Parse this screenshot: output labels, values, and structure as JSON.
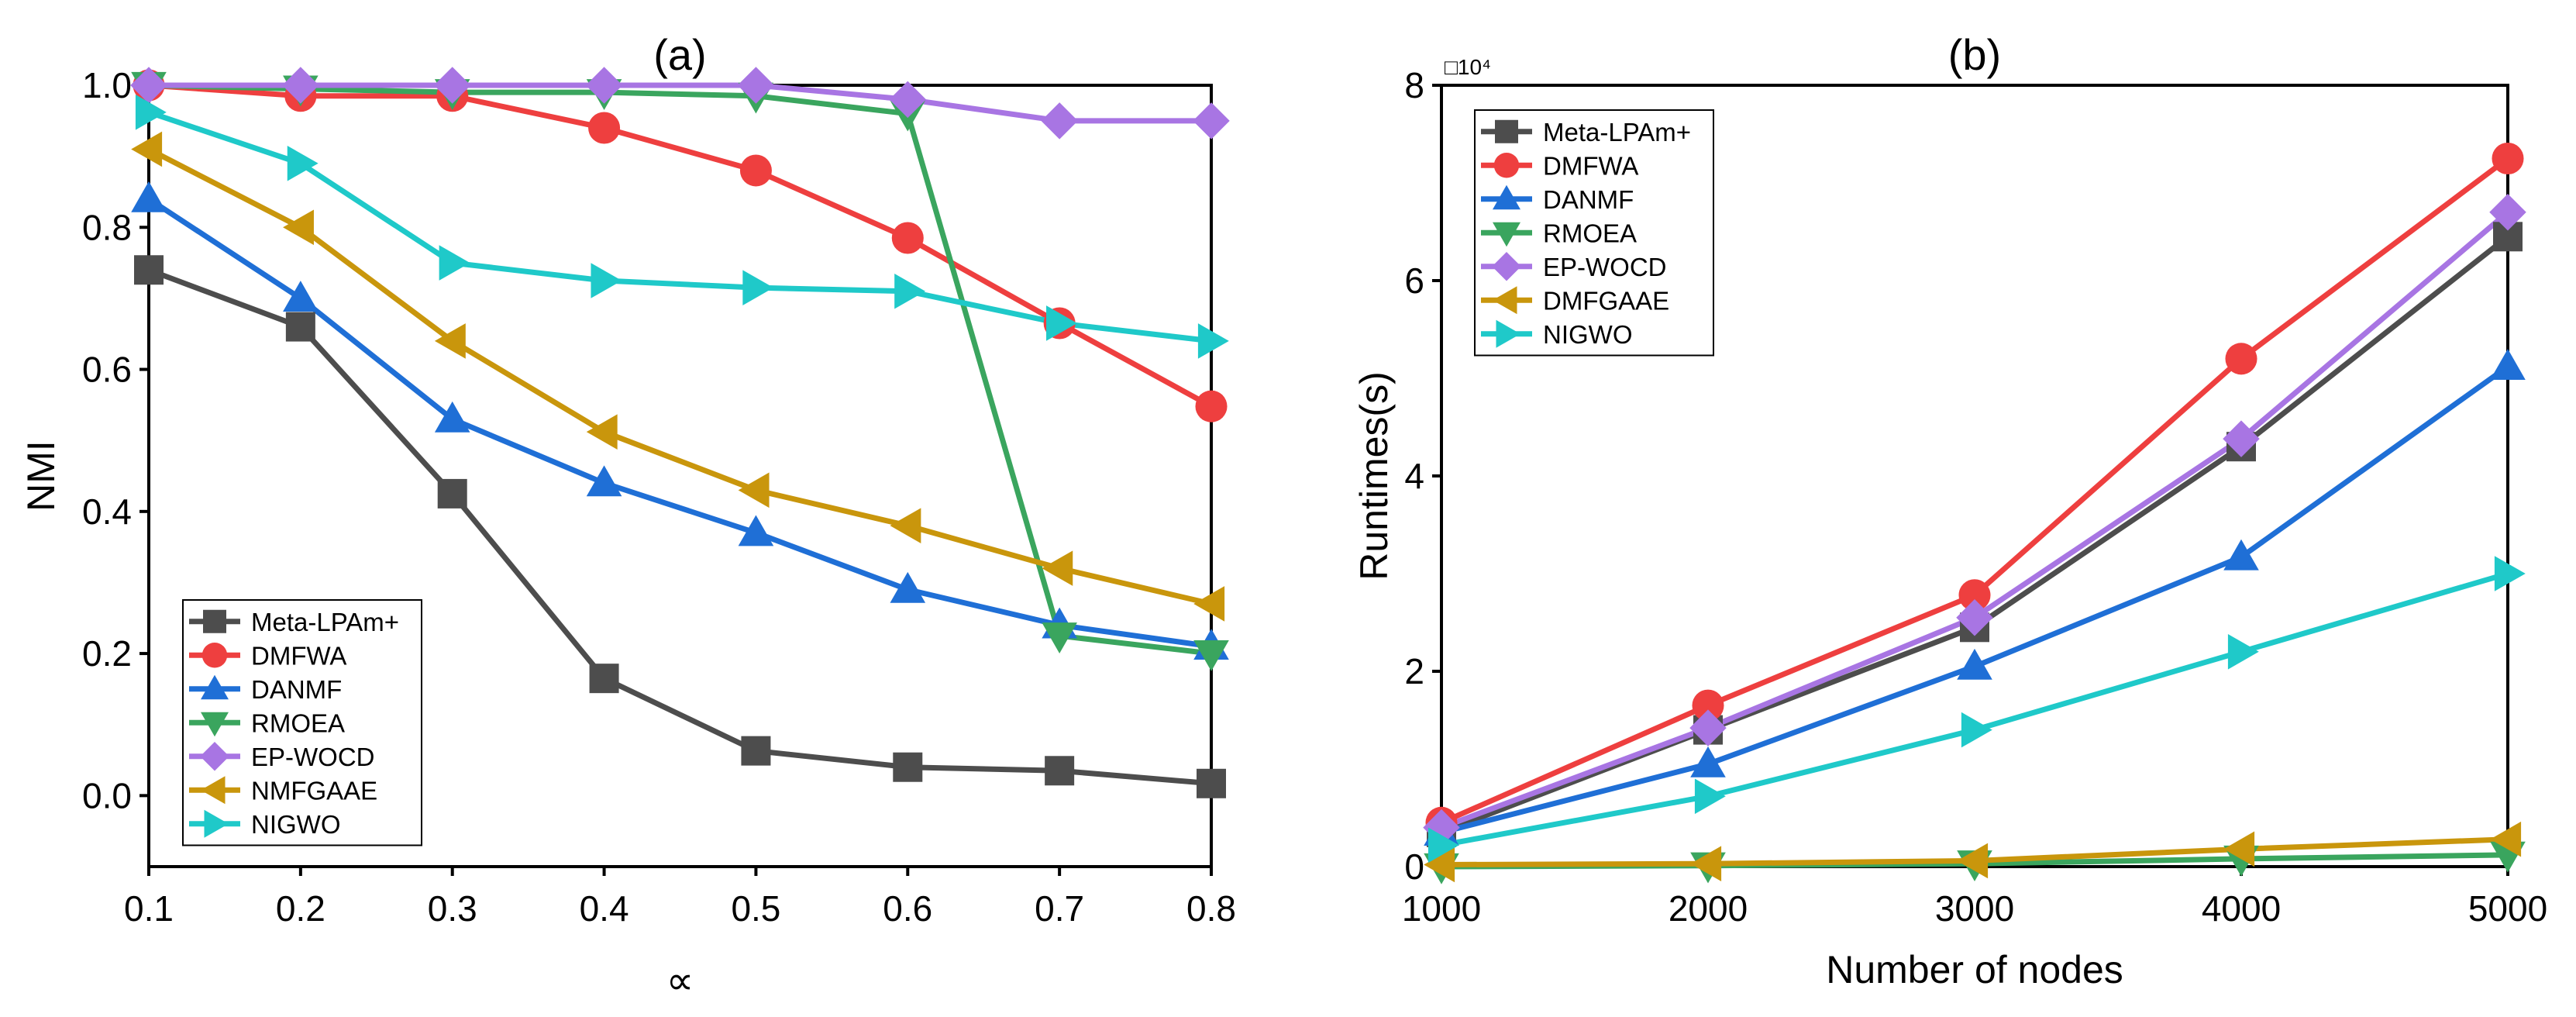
{
  "chart_data": [
    {
      "type": "line",
      "title": "(a)",
      "xlabel": "∝",
      "ylabel": "NMI",
      "x": [
        0.1,
        0.2,
        0.3,
        0.4,
        0.5,
        0.6,
        0.7,
        0.8
      ],
      "xticks": [
        0.1,
        0.2,
        0.3,
        0.4,
        0.5,
        0.6,
        0.7,
        0.8
      ],
      "xtick_labels": [
        "0.1",
        "0.2",
        "0.3",
        "0.4",
        "0.5",
        "0.6",
        "0.7",
        "0.8"
      ],
      "yticks": [
        0.0,
        0.2,
        0.4,
        0.6,
        0.8,
        1.0
      ],
      "ytick_labels": [
        "0.0",
        "0.2",
        "0.4",
        "0.6",
        "0.8",
        "1.0"
      ],
      "xlim": [
        0.1,
        0.8
      ],
      "ylim": [
        -0.1,
        1.0
      ],
      "legend_position": "bottom-left",
      "grid": false,
      "series": [
        {
          "name": "Meta-LPAm+",
          "color": "#4d4d4d",
          "marker": "square",
          "values": [
            0.74,
            0.66,
            0.425,
            0.165,
            0.063,
            0.04,
            0.035,
            0.017
          ]
        },
        {
          "name": "DMFWA",
          "color": "#ee3f3f",
          "marker": "circle",
          "values": [
            1.0,
            0.985,
            0.985,
            0.94,
            0.88,
            0.785,
            0.665,
            0.548
          ]
        },
        {
          "name": "DANMF",
          "color": "#1f6fd6",
          "marker": "triangle-up",
          "values": [
            0.84,
            0.7,
            0.53,
            0.44,
            0.37,
            0.29,
            0.24,
            0.21
          ]
        },
        {
          "name": "RMOEA",
          "color": "#3aa55e",
          "marker": "triangle-down",
          "values": [
            1.0,
            0.995,
            0.99,
            0.99,
            0.985,
            0.96,
            0.225,
            0.2
          ]
        },
        {
          "name": "EP-WOCD",
          "color": "#a875e3",
          "marker": "diamond",
          "values": [
            1.0,
            1.0,
            1.0,
            1.0,
            1.0,
            0.98,
            0.95,
            0.95
          ]
        },
        {
          "name": "NMFGAAE",
          "color": "#c9960c",
          "marker": "triangle-left",
          "values": [
            0.91,
            0.8,
            0.64,
            0.512,
            0.43,
            0.38,
            0.32,
            0.27
          ]
        },
        {
          "name": "NIGWO",
          "color": "#1fc9c9",
          "marker": "triangle-right",
          "values": [
            0.962,
            0.89,
            0.75,
            0.725,
            0.715,
            0.71,
            0.665,
            0.64
          ]
        }
      ]
    },
    {
      "type": "line",
      "title": "(b)",
      "xlabel": "Number of nodes",
      "ylabel": "Runtimes(s)",
      "y_scale_label": "□10⁴",
      "x": [
        1000,
        2000,
        3000,
        4000,
        5000
      ],
      "xticks": [
        1000,
        2000,
        3000,
        4000,
        5000
      ],
      "xtick_labels": [
        "1000",
        "2000",
        "3000",
        "4000",
        "5000"
      ],
      "yticks": [
        0,
        2,
        4,
        6,
        8
      ],
      "ytick_labels": [
        "0",
        "2",
        "4",
        "6",
        "8"
      ],
      "xlim": [
        1000,
        5000
      ],
      "ylim": [
        0,
        8
      ],
      "y_units": "x10^4 seconds",
      "legend_position": "top-left",
      "grid": false,
      "series": [
        {
          "name": "Meta-LPAm+",
          "color": "#4d4d4d",
          "marker": "square",
          "values": [
            0.35,
            1.4,
            2.45,
            4.3,
            6.45
          ]
        },
        {
          "name": "DMFWA",
          "color": "#ee3f3f",
          "marker": "circle",
          "values": [
            0.45,
            1.65,
            2.78,
            5.2,
            7.25
          ]
        },
        {
          "name": "DANMF",
          "color": "#1f6fd6",
          "marker": "triangle-up",
          "values": [
            0.35,
            1.05,
            2.05,
            3.17,
            5.12
          ]
        },
        {
          "name": "RMOEA",
          "color": "#3aa55e",
          "marker": "triangle-down",
          "values": [
            0.0,
            0.01,
            0.03,
            0.08,
            0.12
          ]
        },
        {
          "name": "EP-WOCD",
          "color": "#a875e3",
          "marker": "diamond",
          "values": [
            0.4,
            1.42,
            2.55,
            4.38,
            6.7
          ]
        },
        {
          "name": "DMFGAAE",
          "color": "#c9960c",
          "marker": "triangle-left",
          "values": [
            0.02,
            0.03,
            0.06,
            0.18,
            0.28
          ]
        },
        {
          "name": "NIGWO",
          "color": "#1fc9c9",
          "marker": "triangle-right",
          "values": [
            0.22,
            0.72,
            1.4,
            2.2,
            3.0
          ]
        }
      ]
    }
  ]
}
